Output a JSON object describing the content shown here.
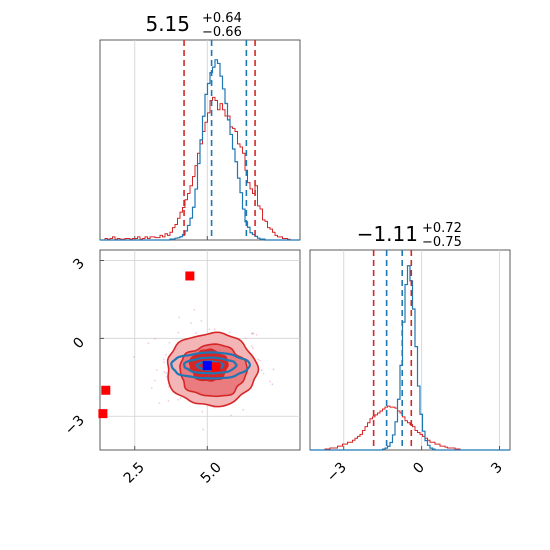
{
  "chart_data": {
    "type": "corner",
    "colors": {
      "primary": "#1f77b4",
      "secondary": "#d62728",
      "truth": "#0000ff"
    },
    "parameters": [
      {
        "title": {
          "value": "5.15",
          "plus": "+0.64",
          "minus": "−0.66"
        },
        "range": [
          1.3,
          8.2
        ],
        "ticks": [
          2.5,
          5.0
        ],
        "tick_labels": [
          "2.5",
          "5.0"
        ],
        "median_series_a": 5.15,
        "interval_series_a": [
          5.15,
          6.35
        ],
        "quantiles_series_b": [
          4.2,
          6.65
        ]
      },
      {
        "title": {
          "value": "−1.11",
          "plus": "+0.72",
          "minus": "−0.75"
        },
        "range": [
          -4.3,
          3.4
        ],
        "ticks": [
          -3,
          0,
          3
        ],
        "tick_labels": [
          "−3",
          "0",
          "3"
        ],
        "interval_series_a": [
          -1.35,
          -0.75
        ],
        "quantiles_series_b": [
          -1.85,
          -0.4
        ]
      }
    ],
    "hist_a_param1": [
      0,
      0,
      0,
      0,
      0,
      0,
      0,
      0,
      0,
      0,
      0,
      0,
      0,
      0,
      0,
      0,
      0,
      0,
      0,
      0,
      0,
      0,
      0,
      0,
      0,
      0,
      0,
      0,
      0.005,
      0.005,
      0.01,
      0.012,
      0.018,
      0.03,
      0.05,
      0.08,
      0.12,
      0.18,
      0.28,
      0.42,
      0.55,
      0.68,
      0.8,
      0.86,
      0.92,
      0.95,
      0.99,
      0.97,
      0.9,
      0.83,
      0.75,
      0.66,
      0.58,
      0.5,
      0.43,
      0.34,
      0.26,
      0.17,
      0.1,
      0.07,
      0.04,
      0.03,
      0.02,
      0.01,
      0.005,
      0.005,
      0,
      0,
      0,
      0,
      0,
      0,
      0,
      0,
      0,
      0,
      0,
      0,
      0,
      0
    ],
    "hist_b_param1": [
      0,
      0,
      0.01,
      0.005,
      0.01,
      0.02,
      0.005,
      0.01,
      0.005,
      0.005,
      0.01,
      0.01,
      0.005,
      0.01,
      0.01,
      0.02,
      0.005,
      0.01,
      0.02,
      0.01,
      0.02,
      0.02,
      0.015,
      0.015,
      0.03,
      0.02,
      0.04,
      0.03,
      0.05,
      0.08,
      0.1,
      0.14,
      0.18,
      0.21,
      0.26,
      0.3,
      0.35,
      0.41,
      0.48,
      0.56,
      0.62,
      0.7,
      0.76,
      0.82,
      0.9,
      0.92,
      0.9,
      0.84,
      0.88,
      0.84,
      0.8,
      0.8,
      0.73,
      0.72,
      0.7,
      0.62,
      0.6,
      0.56,
      0.45,
      0.37,
      0.33,
      0.3,
      0.35,
      0.22,
      0.2,
      0.13,
      0.12,
      0.08,
      0.07,
      0.05,
      0.03,
      0.02,
      0.02,
      0.01,
      0.01,
      0.005,
      0,
      0,
      0,
      0
    ],
    "hist_a_param2": [
      0,
      0,
      0,
      0,
      0,
      0,
      0,
      0,
      0,
      0,
      0,
      0,
      0,
      0,
      0,
      0,
      0,
      0,
      0,
      0,
      0,
      0,
      0,
      0,
      0,
      0,
      0,
      0,
      0,
      0.005,
      0.01,
      0.02,
      0.04,
      0.08,
      0.15,
      0.27,
      0.45,
      0.68,
      0.88,
      0.98,
      0.9,
      0.75,
      0.55,
      0.34,
      0.19,
      0.1,
      0.05,
      0.025,
      0.01,
      0.005,
      0,
      0,
      0,
      0,
      0,
      0,
      0,
      0,
      0,
      0,
      0,
      0,
      0,
      0,
      0,
      0,
      0,
      0,
      0,
      0,
      0,
      0,
      0,
      0,
      0,
      0,
      0,
      0,
      0,
      0
    ],
    "hist_b_param2": [
      0,
      0,
      0,
      0,
      0,
      0,
      0.005,
      0.005,
      0.01,
      0.01,
      0.01,
      0.02,
      0.02,
      0.03,
      0.03,
      0.04,
      0.04,
      0.05,
      0.06,
      0.07,
      0.08,
      0.1,
      0.12,
      0.14,
      0.16,
      0.17,
      0.18,
      0.19,
      0.2,
      0.21,
      0.22,
      0.225,
      0.22,
      0.22,
      0.215,
      0.2,
      0.19,
      0.17,
      0.15,
      0.14,
      0.13,
      0.12,
      0.1,
      0.09,
      0.08,
      0.07,
      0.06,
      0.05,
      0.04,
      0.04,
      0.03,
      0.03,
      0.02,
      0.02,
      0.015,
      0.01,
      0.01,
      0.01,
      0.005,
      0.005,
      0,
      0,
      0,
      0,
      0,
      0,
      0,
      0,
      0,
      0,
      0,
      0,
      0,
      0,
      0,
      0,
      0,
      0,
      0,
      0
    ],
    "scatter_series_a": {
      "mean": [
        5.15,
        -1.1
      ],
      "sd": [
        0.55,
        0.24
      ]
    },
    "scatter_series_b": {
      "mean": [
        5.15,
        -1.15
      ],
      "sd": [
        0.95,
        0.9
      ]
    },
    "contours_series_b": [
      {
        "level": "outer",
        "center": [
          5.15,
          -1.2
        ],
        "radius": [
          1.55,
          1.4
        ],
        "fill": "#f4b5b6"
      },
      {
        "level": "middle",
        "center": [
          5.2,
          -1.25
        ],
        "radius": [
          1.15,
          1.0
        ],
        "fill": "#ea7b7e"
      },
      {
        "level": "inner",
        "center": [
          5.05,
          -1.05
        ],
        "radius": [
          0.65,
          0.6
        ],
        "fill": "#d62728"
      }
    ],
    "contours_series_a": [
      {
        "center": [
          5.1,
          -1.05
        ],
        "radius": [
          1.35,
          0.5
        ]
      },
      {
        "center": [
          5.1,
          -1.05
        ],
        "radius": [
          0.9,
          0.3
        ]
      },
      {
        "center": [
          5.1,
          -1.05
        ],
        "radius": [
          0.45,
          0.16
        ]
      }
    ],
    "markers_series_b": [
      [
        4.4,
        2.4
      ],
      [
        1.5,
        -2.0
      ],
      [
        1.4,
        -2.9
      ],
      [
        5.3,
        -1.1
      ]
    ],
    "marker_series_a": [
      5.0,
      -1.05
    ]
  }
}
